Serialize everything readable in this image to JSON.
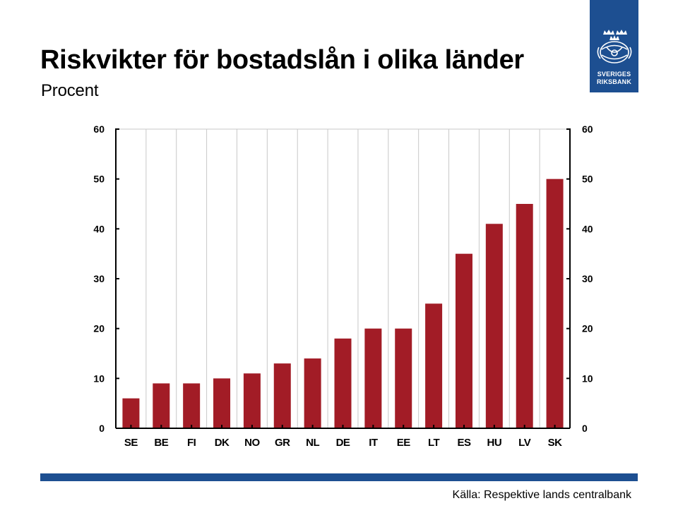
{
  "header": {
    "title": "Riskvikter för bostadslån i olika länder",
    "subtitle": "Procent"
  },
  "logo": {
    "line1": "SVERIGES",
    "line2": "RIKSBANK",
    "background": "#1d4f91"
  },
  "footer": {
    "source": "Källa: Respektive lands centralbank",
    "bar_color": "#1d4f91"
  },
  "chart_data": {
    "type": "bar",
    "title": "Riskvikter för bostadslån i olika länder",
    "subtitle": "Procent",
    "xlabel": "",
    "ylabel": "",
    "categories": [
      "SE",
      "BE",
      "FI",
      "DK",
      "NO",
      "GR",
      "NL",
      "DE",
      "IT",
      "EE",
      "LT",
      "ES",
      "HU",
      "LV",
      "SK"
    ],
    "values": [
      6,
      9,
      9,
      10,
      11,
      13,
      14,
      18,
      20,
      20,
      25,
      35,
      41,
      45,
      50
    ],
    "ylim": [
      0,
      60
    ],
    "yticks": [
      0,
      10,
      20,
      30,
      40,
      50,
      60
    ],
    "secondary_y_axis": true,
    "grid": "vertical",
    "bar_color": "#a21c26",
    "grid_color": "#c8c8c8",
    "legend": false
  }
}
